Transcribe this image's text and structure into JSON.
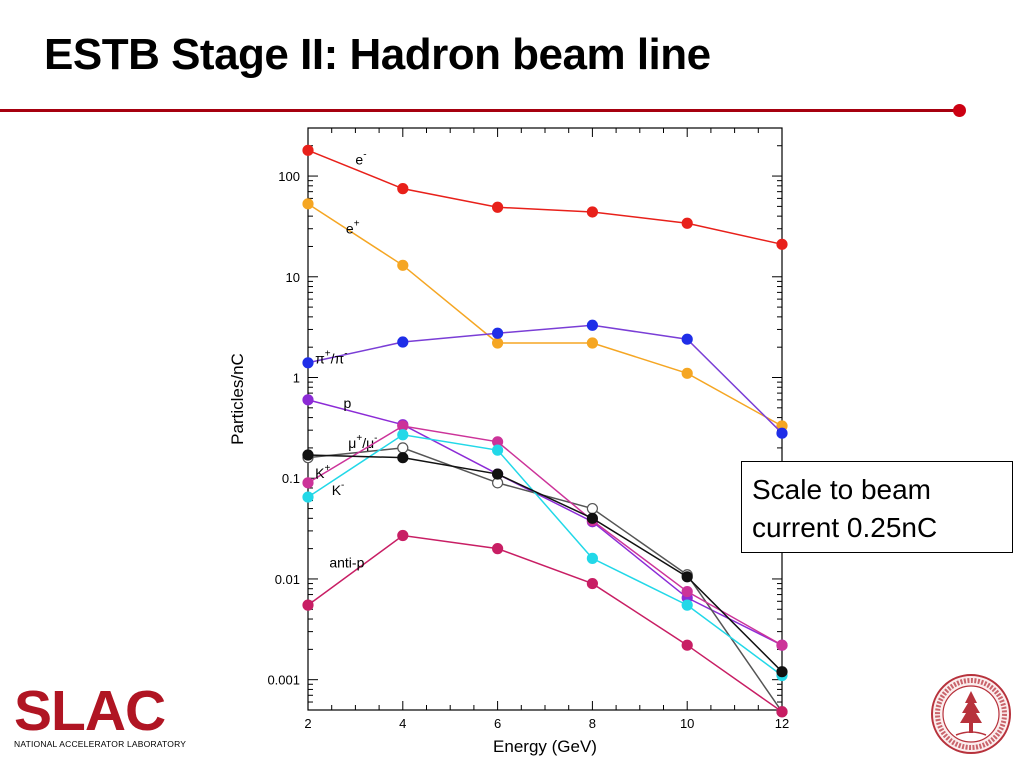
{
  "slide": {
    "title": "ESTB Stage II: Hadron beam line",
    "callout_line1": "Scale to beam",
    "callout_line2": "current 0.25nC"
  },
  "logo": {
    "name": "SLAC",
    "subtitle": "NATIONAL ACCELERATOR LABORATORY"
  },
  "seal": {
    "name": "Stanford University seal",
    "text": "LELAND STANFORD JUNIOR UNIVERSITY 1891"
  },
  "colors": {
    "accent_rule": "#a6000f",
    "slac_red": "#b01523"
  },
  "chart_data": {
    "type": "line",
    "xlabel": "Energy (GeV)",
    "ylabel": "Particles/nC",
    "x_scale": "linear",
    "y_scale": "log",
    "xlim": [
      2,
      12
    ],
    "ylim": [
      0.0005,
      300
    ],
    "x_ticks": [
      "2",
      "4",
      "6",
      "8",
      "10",
      "12"
    ],
    "y_ticks": [
      {
        "value": 0.001,
        "label": "0.001"
      },
      {
        "value": 0.01,
        "label": "0.01"
      },
      {
        "value": 0.1,
        "label": "0.1"
      },
      {
        "value": 1,
        "label": "1"
      },
      {
        "value": 10,
        "label": "10"
      },
      {
        "value": 100,
        "label": "100"
      }
    ],
    "grid": false,
    "series": [
      {
        "name": "e⁻",
        "color": "#e8201a",
        "marker": "filled",
        "x": [
          2,
          4,
          6,
          8,
          10,
          12
        ],
        "y": [
          180,
          75,
          49,
          44,
          34,
          21
        ],
        "label": {
          "text": "e",
          "sup": "-",
          "x": 3.0,
          "y": 130
        }
      },
      {
        "name": "e⁺",
        "color": "#f5a623",
        "marker": "filled",
        "x": [
          2,
          4,
          6,
          8,
          10,
          12
        ],
        "y": [
          53,
          13,
          2.2,
          2.2,
          1.1,
          0.33
        ],
        "label": {
          "text": "e",
          "sup": "+",
          "x": 2.8,
          "y": 27
        }
      },
      {
        "name": "π⁺/π⁻",
        "color": "#1f2ee8",
        "line_color": "#7a3ed6",
        "marker": "filled",
        "x": [
          2,
          4,
          6,
          8,
          10,
          12
        ],
        "y": [
          1.4,
          2.25,
          2.75,
          3.3,
          2.4,
          0.28
        ],
        "label": {
          "text": "π",
          "sup": "+",
          "tail": "/π",
          "sup2": "-",
          "x": 2.15,
          "y": 1.38
        }
      },
      {
        "name": "p",
        "color": "#8c2bd6",
        "marker": "filled",
        "x": [
          2,
          4,
          6,
          8,
          10,
          12
        ],
        "y": [
          0.6,
          0.34,
          0.11,
          0.037,
          0.0065,
          0.0022
        ],
        "label": {
          "text": "p",
          "sup": "",
          "x": 2.75,
          "y": 0.5
        }
      },
      {
        "name": "μ⁺/μ⁻",
        "color": "#555555",
        "marker": "open",
        "x": [
          2,
          4,
          6,
          8,
          10,
          12
        ],
        "y": [
          0.16,
          0.2,
          0.09,
          0.05,
          0.011,
          0.00048
        ],
        "label": {
          "text": "μ",
          "sup": "+",
          "tail": "/μ",
          "sup2": "-",
          "x": 2.85,
          "y": 0.2
        }
      },
      {
        "name": "K⁺",
        "color": "#cc3399",
        "marker": "filled",
        "x": [
          2,
          4,
          6,
          8,
          10,
          12
        ],
        "y": [
          0.09,
          0.33,
          0.23,
          0.038,
          0.0075,
          0.0022
        ],
        "label": {
          "text": "K",
          "sup": "+",
          "x": 2.15,
          "y": 0.1
        }
      },
      {
        "name": "K⁻",
        "color": "#22d8e8",
        "marker": "filled",
        "x": [
          2,
          4,
          6,
          8,
          10,
          12
        ],
        "y": [
          0.065,
          0.27,
          0.19,
          0.016,
          0.0055,
          0.0011
        ],
        "label": {
          "text": "K",
          "sup": "-",
          "x": 2.5,
          "y": 0.068
        }
      },
      {
        "name": "black (unlabeled)",
        "color": "#111111",
        "marker": "filled",
        "x": [
          2,
          4,
          6,
          8,
          10,
          12
        ],
        "y": [
          0.17,
          0.16,
          0.11,
          0.04,
          0.0105,
          0.0012
        ],
        "label": null
      },
      {
        "name": "anti-p",
        "color": "#c81e64",
        "marker": "filled",
        "x": [
          2,
          4,
          6,
          8,
          10,
          12
        ],
        "y": [
          0.0055,
          0.027,
          0.02,
          0.009,
          0.0022,
          0.00048
        ],
        "label": {
          "text": "anti-p",
          "sup": "",
          "x": 2.45,
          "y": 0.013
        }
      }
    ]
  }
}
